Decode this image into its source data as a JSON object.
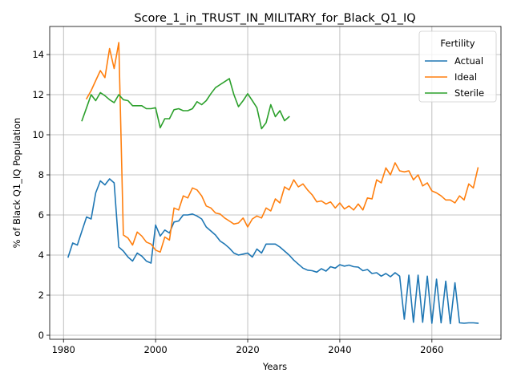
{
  "chart_data": {
    "type": "line",
    "title": "Score_1_in_TRUST_IN_MILITARY_for_Black_Q1_IQ",
    "xlabel": "Years",
    "ylabel": "% of Black Q1_IQ Population",
    "xlim": [
      1977,
      2075
    ],
    "ylim": [
      -0.2,
      15.4
    ],
    "xticks": [
      1980,
      2000,
      2020,
      2040,
      2060
    ],
    "yticks": [
      0,
      2,
      4,
      6,
      8,
      10,
      12,
      14
    ],
    "grid": true,
    "legend": {
      "title": "Fertility",
      "placement": "top-right"
    },
    "series": [
      {
        "name": "Actual",
        "color": "#1f77b4",
        "x": [
          1981,
          1982,
          1983,
          1984,
          1985,
          1986,
          1987,
          1988,
          1989,
          1990,
          1991,
          1992,
          1993,
          1994,
          1995,
          1996,
          1997,
          1998,
          1999,
          2000,
          2001,
          2002,
          2003,
          2004,
          2005,
          2006,
          2007,
          2008,
          2009,
          2010,
          2011,
          2012,
          2013,
          2014,
          2015,
          2016,
          2017,
          2018,
          2019,
          2020,
          2021,
          2022,
          2023,
          2024,
          2025,
          2026,
          2027,
          2028,
          2029,
          2030,
          2031,
          2032,
          2033,
          2034,
          2035,
          2036,
          2037,
          2038,
          2039,
          2040,
          2041,
          2042,
          2043,
          2044,
          2045,
          2046,
          2047,
          2048,
          2049,
          2050,
          2051,
          2052,
          2053,
          2054,
          2055,
          2056,
          2057,
          2058,
          2059,
          2060,
          2061,
          2062,
          2063,
          2064,
          2065,
          2066,
          2067,
          2068,
          2069,
          2070
        ],
        "y": [
          3.9,
          4.6,
          4.5,
          5.2,
          5.9,
          5.8,
          7.1,
          7.7,
          7.5,
          7.8,
          7.6,
          4.4,
          4.2,
          3.9,
          3.7,
          4.1,
          3.95,
          3.7,
          3.6,
          5.5,
          4.95,
          5.25,
          5.1,
          5.65,
          5.7,
          6.0,
          6.0,
          6.05,
          5.95,
          5.8,
          5.4,
          5.2,
          5.0,
          4.7,
          4.55,
          4.35,
          4.1,
          4.0,
          4.05,
          4.1,
          3.9,
          4.3,
          4.1,
          4.55,
          4.55,
          4.55,
          4.4,
          4.2,
          4.0,
          3.75,
          3.55,
          3.35,
          3.25,
          3.22,
          3.15,
          3.32,
          3.2,
          3.42,
          3.35,
          3.52,
          3.45,
          3.5,
          3.42,
          3.4,
          3.22,
          3.28,
          3.08,
          3.12,
          2.95,
          3.08,
          2.92,
          3.12,
          2.95,
          0.8,
          3.0,
          0.65,
          3.0,
          0.65,
          2.95,
          0.6,
          2.8,
          0.62,
          2.7,
          0.58,
          2.62,
          0.62,
          0.6,
          0.62,
          0.62,
          0.6
        ]
      },
      {
        "name": "Ideal",
        "color": "#ff7f0e",
        "x": [
          1985,
          1986,
          1987,
          1988,
          1989,
          1990,
          1991,
          1992,
          1993,
          1994,
          1995,
          1996,
          1997,
          1998,
          1999,
          2000,
          2001,
          2002,
          2003,
          2004,
          2005,
          2006,
          2007,
          2008,
          2009,
          2010,
          2011,
          2012,
          2013,
          2014,
          2015,
          2016,
          2017,
          2018,
          2019,
          2020,
          2021,
          2022,
          2023,
          2024,
          2025,
          2026,
          2027,
          2028,
          2029,
          2030,
          2031,
          2032,
          2033,
          2034,
          2035,
          2036,
          2037,
          2038,
          2039,
          2040,
          2041,
          2042,
          2043,
          2044,
          2045,
          2046,
          2047,
          2048,
          2049,
          2050,
          2051,
          2052,
          2053,
          2054,
          2055,
          2056,
          2057,
          2058,
          2059,
          2060,
          2061,
          2062,
          2063,
          2064,
          2065,
          2066,
          2067,
          2068,
          2069,
          2070
        ],
        "y": [
          11.8,
          12.2,
          12.7,
          13.2,
          12.85,
          14.3,
          13.3,
          14.6,
          5.0,
          4.85,
          4.5,
          5.15,
          4.95,
          4.65,
          4.55,
          4.25,
          4.15,
          4.9,
          4.75,
          6.35,
          6.25,
          6.95,
          6.85,
          7.35,
          7.25,
          6.95,
          6.45,
          6.35,
          6.1,
          6.05,
          5.85,
          5.7,
          5.55,
          5.6,
          5.85,
          5.4,
          5.8,
          5.95,
          5.85,
          6.35,
          6.2,
          6.8,
          6.6,
          7.4,
          7.25,
          7.75,
          7.4,
          7.55,
          7.25,
          7.0,
          6.65,
          6.7,
          6.55,
          6.65,
          6.35,
          6.6,
          6.3,
          6.45,
          6.25,
          6.55,
          6.25,
          6.85,
          6.8,
          7.75,
          7.6,
          8.35,
          8.0,
          8.6,
          8.2,
          8.15,
          8.2,
          7.75,
          8.0,
          7.45,
          7.6,
          7.2,
          7.1,
          6.95,
          6.75,
          6.75,
          6.6,
          6.95,
          6.75,
          7.55,
          7.35,
          8.35
        ]
      },
      {
        "name": "Sterile",
        "color": "#2ca02c",
        "x": [
          1984,
          1985,
          1986,
          1987,
          1988,
          1989,
          1990,
          1991,
          1992,
          1993,
          1994,
          1995,
          1996,
          1997,
          1998,
          1999,
          2000,
          2001,
          2002,
          2003,
          2004,
          2005,
          2006,
          2007,
          2008,
          2009,
          2010,
          2011,
          2012,
          2013,
          2014,
          2015,
          2016,
          2017,
          2018,
          2019,
          2020,
          2021,
          2022,
          2023,
          2024,
          2025,
          2026,
          2027,
          2028,
          2029
        ],
        "y": [
          10.7,
          11.35,
          12.0,
          11.7,
          12.1,
          11.95,
          11.75,
          11.6,
          12.0,
          11.75,
          11.7,
          11.45,
          11.45,
          11.45,
          11.3,
          11.3,
          11.35,
          10.35,
          10.8,
          10.8,
          11.25,
          11.3,
          11.2,
          11.2,
          11.3,
          11.65,
          11.5,
          11.7,
          12.05,
          12.35,
          12.5,
          12.65,
          12.8,
          12.0,
          11.4,
          11.7,
          12.05,
          11.7,
          11.35,
          10.3,
          10.6,
          11.5,
          10.9,
          11.2,
          10.7,
          10.9
        ]
      }
    ]
  }
}
